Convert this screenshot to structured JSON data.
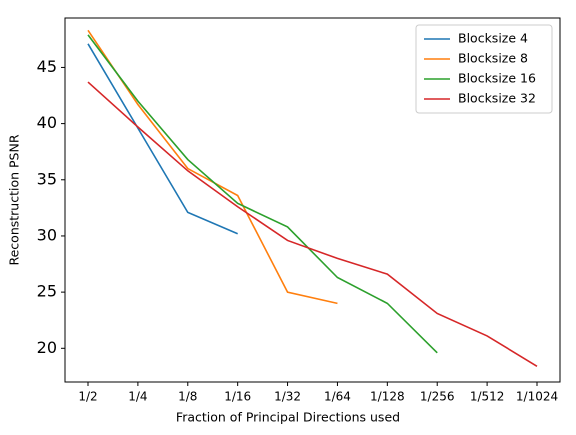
{
  "chart_data": {
    "type": "line",
    "xlabel": "Fraction of Principal Directions used",
    "ylabel": "Reconstruction PSNR",
    "categories": [
      "1/2",
      "1/4",
      "1/8",
      "1/16",
      "1/32",
      "1/64",
      "1/128",
      "1/256",
      "1/512",
      "1/1024"
    ],
    "series": [
      {
        "name": "Blocksize 4",
        "color": "#1f77b4",
        "values": [
          47.1,
          39.6,
          32.1,
          30.2,
          null,
          null,
          null,
          null,
          null,
          null
        ]
      },
      {
        "name": "Blocksize 8",
        "color": "#ff7f0e",
        "values": [
          48.3,
          41.7,
          36.0,
          33.6,
          25.0,
          24.0,
          null,
          null,
          null,
          null
        ]
      },
      {
        "name": "Blocksize 16",
        "color": "#2ca02c",
        "values": [
          47.9,
          42.0,
          36.8,
          32.9,
          30.8,
          26.3,
          24.0,
          19.6,
          null,
          null
        ]
      },
      {
        "name": "Blocksize 32",
        "color": "#d62728",
        "values": [
          43.7,
          39.7,
          35.8,
          32.6,
          29.6,
          28.0,
          26.6,
          23.1,
          21.1,
          18.4
        ]
      }
    ],
    "ylim": [
      17.0,
      49.4
    ],
    "yticks": [
      20,
      25,
      30,
      35,
      40,
      45
    ],
    "grid": false,
    "legend": "upper right"
  }
}
